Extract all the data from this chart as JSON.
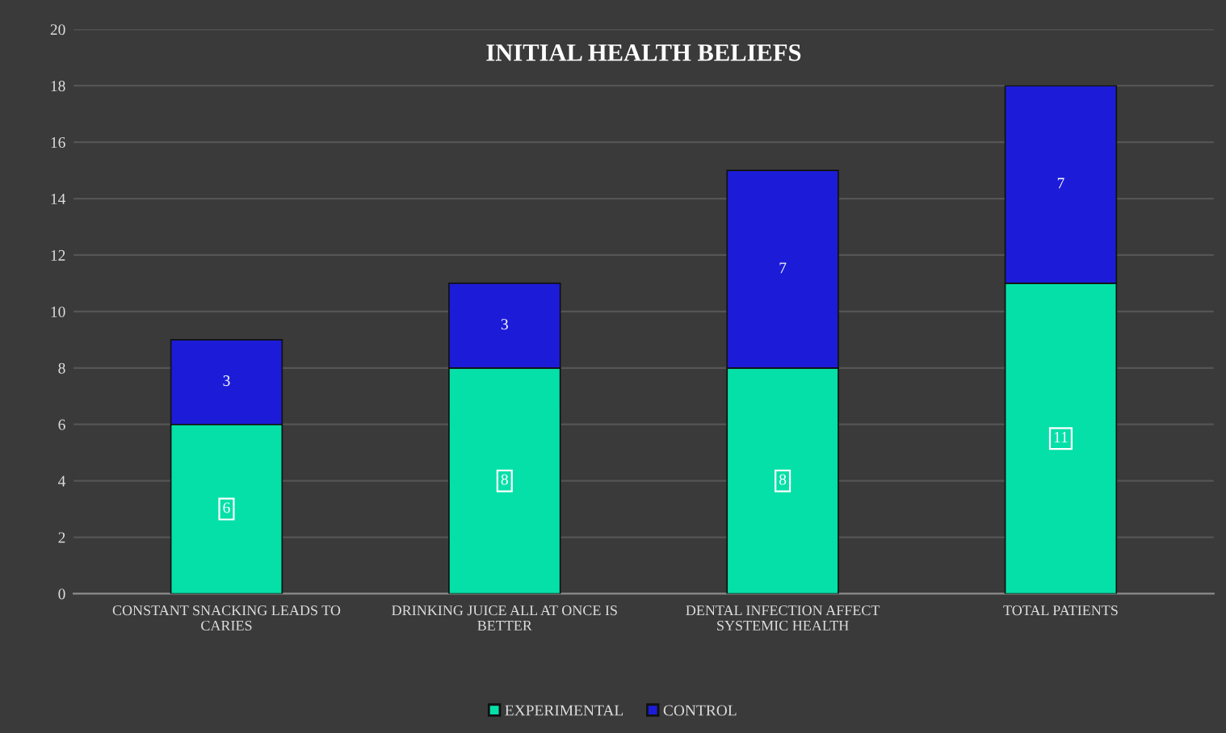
{
  "chart_data": {
    "type": "bar",
    "title": "INITIAL HEALTH BELIEFS",
    "stacked": true,
    "categories": [
      "CONSTANT SNACKING LEADS TO CARIES",
      "DRINKING JUICE ALL AT ONCE IS BETTER",
      "DENTAL INFECTION AFFECT SYSTEMIC HEALTH",
      "TOTAL PATIENTS"
    ],
    "series": [
      {
        "name": "EXPERIMENTAL",
        "color": "#04e0a8",
        "values": [
          6,
          8,
          8,
          11
        ]
      },
      {
        "name": "CONTROL",
        "color": "#1c1cd8",
        "values": [
          3,
          3,
          7,
          7
        ]
      }
    ],
    "ylim": [
      0,
      20
    ],
    "yticks": [
      0,
      2,
      4,
      6,
      8,
      10,
      12,
      14,
      16,
      18,
      20
    ],
    "grid": "y",
    "legend": "bottom",
    "data_labels": true
  }
}
